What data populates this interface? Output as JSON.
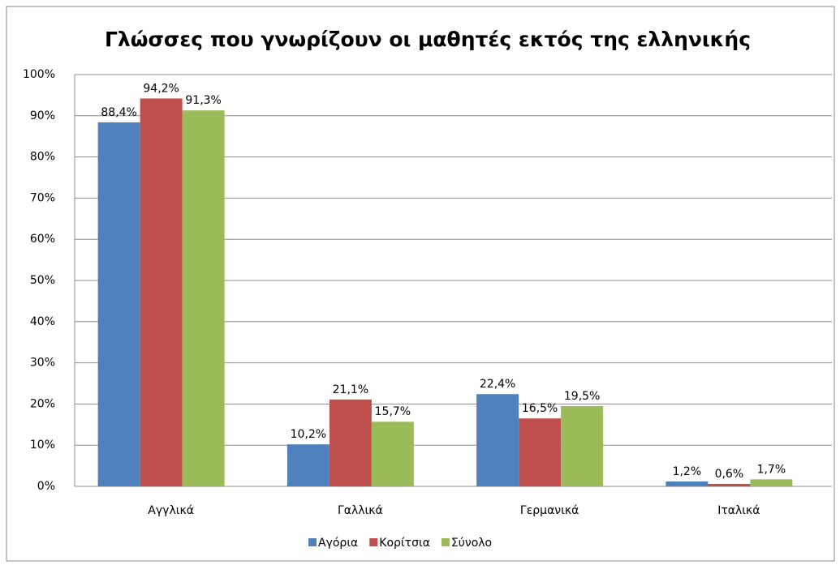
{
  "chart_data": {
    "type": "bar",
    "title": "Γλώσσες που γνωρίζουν οι μαθητές εκτός της ελληνικής",
    "categories": [
      "Αγγλικά",
      "Γαλλικά",
      "Γερμανικά",
      "Ιταλικά"
    ],
    "series": [
      {
        "name": "Αγόρια",
        "color": "#4f81bd",
        "values": [
          88.4,
          10.2,
          22.4,
          1.2
        ],
        "value_labels": [
          "88,4%",
          "10,2%",
          "22,4%",
          "1,2%"
        ]
      },
      {
        "name": "Κορίτσια",
        "color": "#c0504d",
        "values": [
          94.2,
          21.1,
          16.5,
          0.6
        ],
        "value_labels": [
          "94,2%",
          "21,1%",
          "16,5%",
          "0,6%"
        ]
      },
      {
        "name": "Σύνολο",
        "color": "#9bbb59",
        "values": [
          91.3,
          15.7,
          19.5,
          1.7
        ],
        "value_labels": [
          "91,3%",
          "15,7%",
          "19,5%",
          "1,7%"
        ]
      }
    ],
    "ylim": [
      0,
      100
    ],
    "yticks": [
      {
        "value": 0,
        "label": "0%"
      },
      {
        "value": 10,
        "label": "10%"
      },
      {
        "value": 20,
        "label": "20%"
      },
      {
        "value": 30,
        "label": "30%"
      },
      {
        "value": 40,
        "label": "40%"
      },
      {
        "value": 50,
        "label": "50%"
      },
      {
        "value": 60,
        "label": "60%"
      },
      {
        "value": 70,
        "label": "70%"
      },
      {
        "value": 80,
        "label": "80%"
      },
      {
        "value": 90,
        "label": "90%"
      },
      {
        "value": 100,
        "label": "100%"
      }
    ],
    "grid": true,
    "legend": "bottom"
  }
}
